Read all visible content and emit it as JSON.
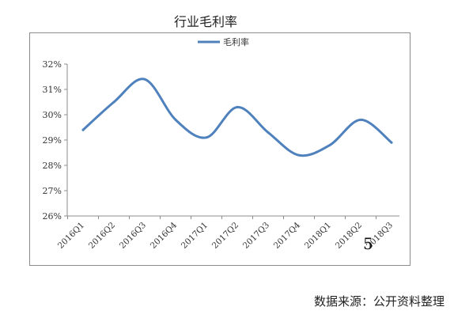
{
  "page": {
    "title": "行业毛利率",
    "source": "数据来源：公开资料整理",
    "page_number": "5"
  },
  "chart_data": {
    "type": "line",
    "title": "行业毛利率",
    "xlabel": "",
    "ylabel": "",
    "categories": [
      "2016Q1",
      "2016Q2",
      "2016Q3",
      "2016Q4",
      "2017Q1",
      "2017Q2",
      "2017Q3",
      "2017Q4",
      "2018Q1",
      "2018Q2",
      "2018Q3"
    ],
    "series": [
      {
        "name": "毛利率",
        "values": [
          29.4,
          30.5,
          31.4,
          29.8,
          29.1,
          30.3,
          29.3,
          28.4,
          28.8,
          29.8,
          28.9
        ]
      }
    ],
    "ylim": [
      26,
      32
    ],
    "yticks": [
      26,
      27,
      28,
      29,
      30,
      31,
      32
    ],
    "ytick_labels": [
      "26%",
      "27%",
      "28%",
      "29%",
      "30%",
      "31%",
      "32%"
    ],
    "legend": "top-center",
    "grid": false,
    "colors": {
      "line": "#4f81bd",
      "axis": "#8c8c8c"
    }
  }
}
